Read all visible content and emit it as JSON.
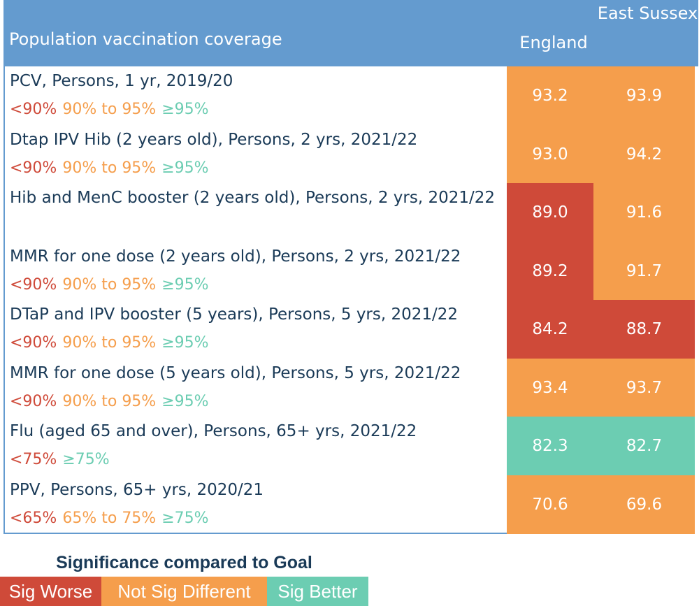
{
  "colors": {
    "header": "#649bcf",
    "worse": "#cf4a39",
    "not_sig": "#f59e4c",
    "better": "#6ccdb2",
    "text": "#1a3a57"
  },
  "chart_data": {
    "type": "table",
    "title": "Population vaccination coverage",
    "columns": [
      "England",
      "East Sussex"
    ],
    "rows": [
      {
        "label": "PCV, Persons, 1 yr, 2019/20",
        "thresholds": [
          {
            "text": "<90%",
            "status": "worse"
          },
          {
            "text": "90% to 95%",
            "status": "not_sig"
          },
          {
            "text": "≥95%",
            "status": "better"
          }
        ],
        "values": [
          93.2,
          93.9
        ],
        "status": [
          "not_sig",
          "not_sig"
        ]
      },
      {
        "label": " Dtap  IPV  Hib (2 years old), Persons, 2 yrs, 2021/22",
        "thresholds": [
          {
            "text": "<90%",
            "status": "worse"
          },
          {
            "text": "90% to 95%",
            "status": "not_sig"
          },
          {
            "text": "≥95%",
            "status": "better"
          }
        ],
        "values": [
          93.0,
          94.2
        ],
        "status": [
          "not_sig",
          "not_sig"
        ]
      },
      {
        "label": "Hib and  MenC booster (2 years old), Persons, 2 yrs, 2021/22",
        "thresholds": [],
        "values": [
          89.0,
          91.6
        ],
        "status": [
          "worse",
          "not_sig"
        ]
      },
      {
        "label": "MMR for one dose (2 years old), Persons, 2 yrs, 2021/22",
        "thresholds": [
          {
            "text": "<90%",
            "status": "worse"
          },
          {
            "text": "90% to 95%",
            "status": "not_sig"
          },
          {
            "text": "≥95%",
            "status": "better"
          }
        ],
        "values": [
          89.2,
          91.7
        ],
        "status": [
          "worse",
          "not_sig"
        ]
      },
      {
        "label": "DTaP and IPV booster (5 years), Persons, 5 yrs, 2021/22",
        "thresholds": [
          {
            "text": "<90%",
            "status": "worse"
          },
          {
            "text": "90% to 95%",
            "status": "not_sig"
          },
          {
            "text": "≥95%",
            "status": "better"
          }
        ],
        "values": [
          84.2,
          88.7
        ],
        "status": [
          "worse",
          "worse"
        ]
      },
      {
        "label": "MMR for one dose (5 years old), Persons, 5 yrs, 2021/22",
        "thresholds": [
          {
            "text": "<90%",
            "status": "worse"
          },
          {
            "text": "90% to 95%",
            "status": "not_sig"
          },
          {
            "text": "≥95%",
            "status": "better"
          }
        ],
        "values": [
          93.4,
          93.7
        ],
        "status": [
          "not_sig",
          "not_sig"
        ]
      },
      {
        "label": "Flu (aged 65 and over), Persons, 65+ yrs, 2021/22",
        "thresholds": [
          {
            "text": "<75%",
            "status": "worse"
          },
          {
            "text": "≥75%",
            "status": "better"
          }
        ],
        "values": [
          82.3,
          82.7
        ],
        "status": [
          "better",
          "better"
        ]
      },
      {
        "label": "PPV, Persons, 65+ yrs, 2020/21",
        "thresholds": [
          {
            "text": "<65%",
            "status": "worse"
          },
          {
            "text": "65% to 75%",
            "status": "not_sig"
          },
          {
            "text": "≥75%",
            "status": "better"
          }
        ],
        "values": [
          70.6,
          69.6
        ],
        "status": [
          "not_sig",
          "not_sig"
        ]
      }
    ]
  },
  "key": {
    "title": "Significance compared to Goal",
    "items": [
      {
        "label": "Sig Worse",
        "status": "worse"
      },
      {
        "label": "Not Sig Different",
        "status": "not_sig"
      },
      {
        "label": "Sig Better",
        "status": "better"
      }
    ]
  }
}
